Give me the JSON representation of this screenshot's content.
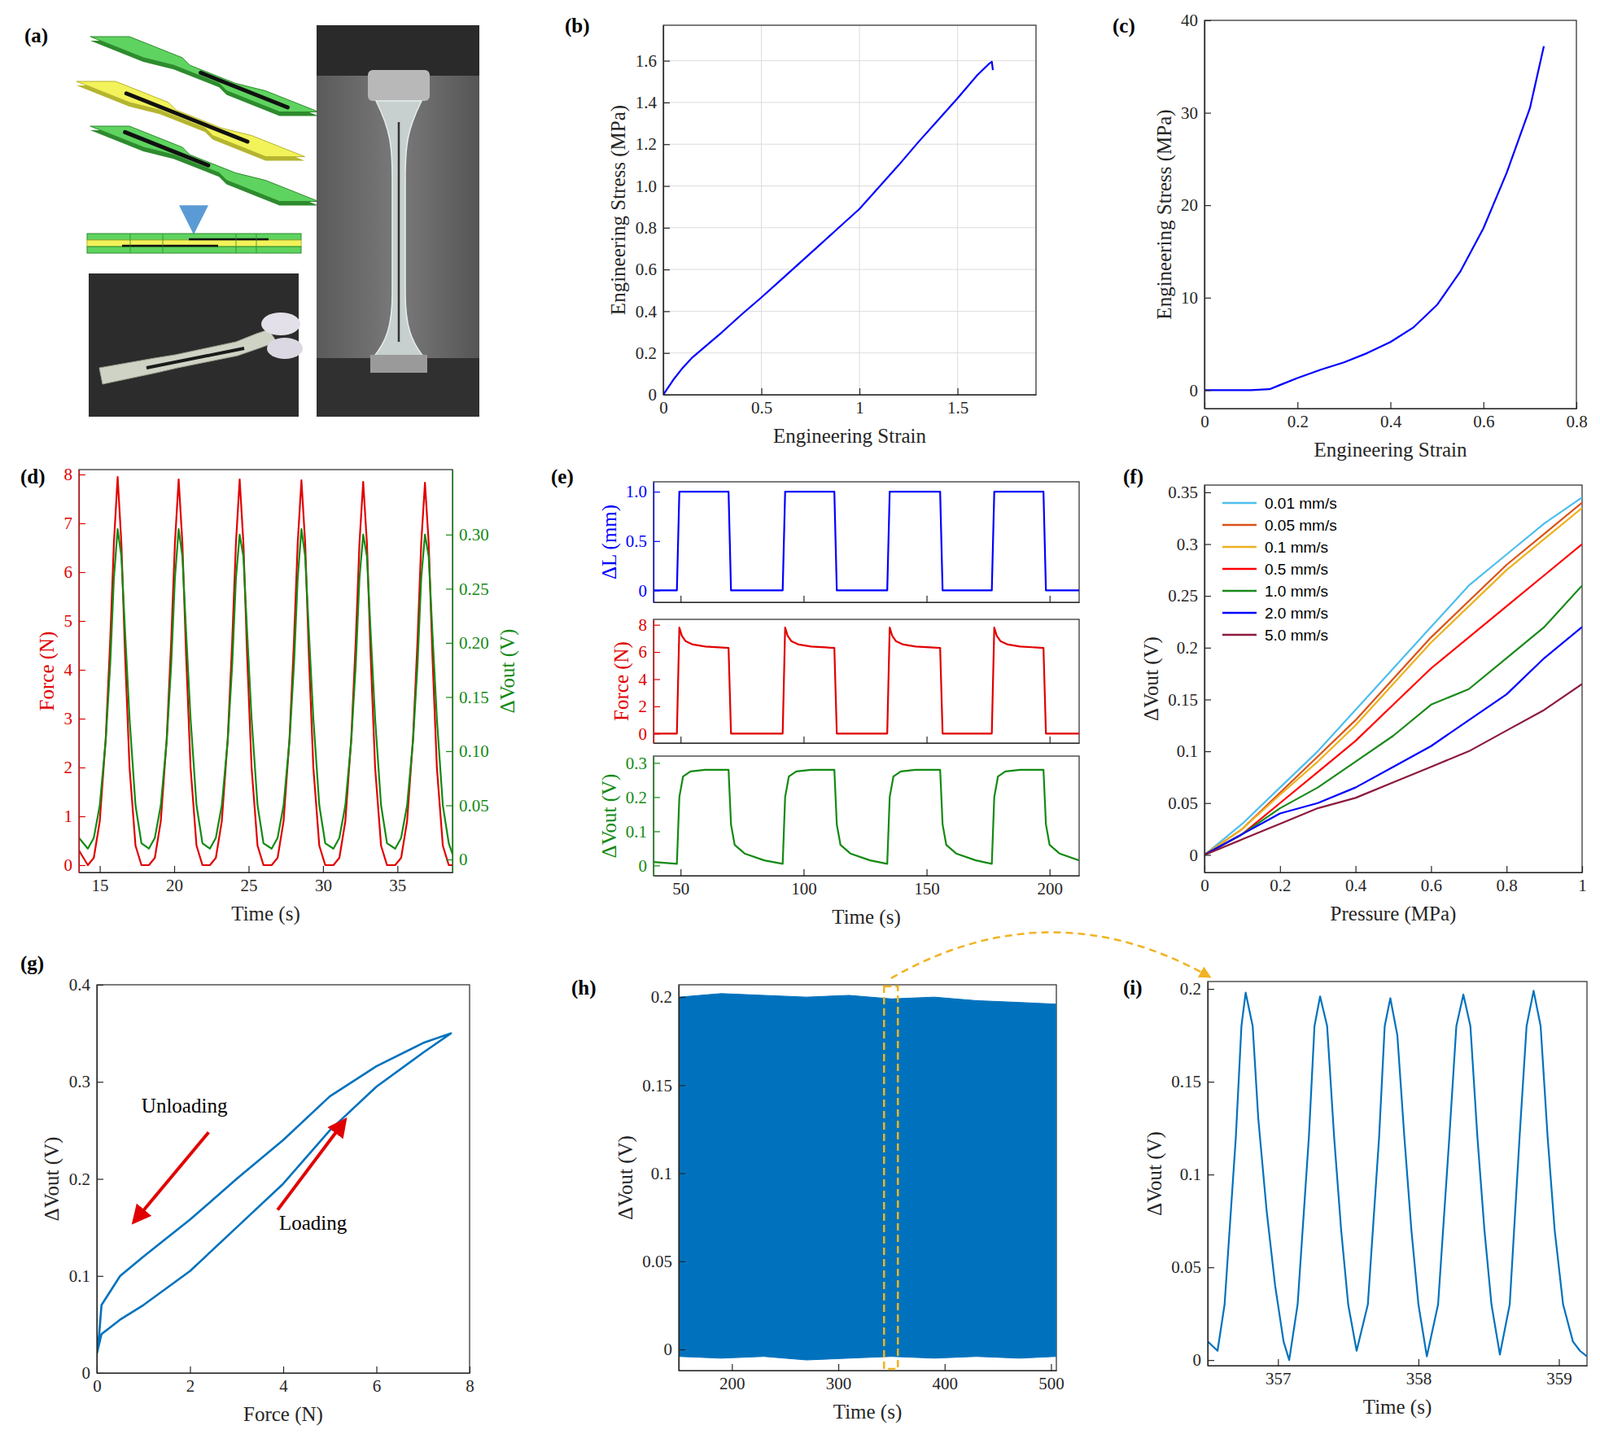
{
  "chart_data": [
    {
      "label": "(a)",
      "type": "diagram"
    },
    {
      "label": "(b)",
      "type": "line",
      "x_label": "Engineering Strain",
      "y_label": "Engineering Stress (MPa)",
      "xlim": [
        0,
        1.9
      ],
      "xticks": [
        0,
        0.5,
        1,
        1.5
      ],
      "ylim": [
        0,
        1.77
      ],
      "yticks": [
        0,
        0.2,
        0.4,
        0.6,
        0.8,
        {
          "value": 1,
          "label": "1.0"
        },
        1.2,
        1.4,
        1.6
      ],
      "grid": true,
      "x": [
        0,
        0.05,
        0.1,
        0.15,
        0.2,
        0.3,
        0.4,
        0.5,
        0.6,
        0.7,
        0.8,
        0.9,
        1.0,
        1.1,
        1.2,
        1.3,
        1.4,
        1.5,
        1.6,
        1.66,
        1.675,
        1.68
      ],
      "series": [
        {
          "color": "#0000ff",
          "values": [
            0,
            0.07,
            0.13,
            0.18,
            0.22,
            0.3,
            0.385,
            0.466,
            0.55,
            0.635,
            0.72,
            0.805,
            0.89,
            0.995,
            1.1,
            1.21,
            1.315,
            1.42,
            1.53,
            1.585,
            1.595,
            1.555
          ]
        }
      ]
    },
    {
      "label": "(c)",
      "type": "line",
      "x_label": "Engineering Strain",
      "y_label": "Engineering Stress (MPa)",
      "xlim": [
        0,
        0.8
      ],
      "xticks": [
        0,
        0.2,
        0.4,
        0.6,
        0.8
      ],
      "ylim": [
        -2,
        40
      ],
      "yticks": [
        0,
        10,
        20,
        30,
        40
      ],
      "x": [
        0,
        0.05,
        0.1,
        0.14,
        0.16,
        0.2,
        0.25,
        0.3,
        0.35,
        0.4,
        0.45,
        0.5,
        0.55,
        0.6,
        0.65,
        0.7,
        0.73
      ],
      "series": [
        {
          "color": "#0000ff",
          "values": [
            0,
            0,
            0,
            0.1,
            0.5,
            1.3,
            2.2,
            3.0,
            4.0,
            5.2,
            6.8,
            9.2,
            12.8,
            17.5,
            23.5,
            30.5,
            37.2
          ]
        }
      ]
    },
    {
      "label": "(d)",
      "type": "line",
      "x_label": "Time (s)",
      "y_label": "Force (N)",
      "y2_label": "ΔVout (V)",
      "xlim": [
        13.6,
        38.7
      ],
      "xticks": [
        15,
        20,
        25,
        30,
        35
      ],
      "ylim": [
        -0.15,
        8.1
      ],
      "yticks": [
        0,
        1,
        2,
        3,
        4,
        5,
        6,
        7,
        8
      ],
      "y2lim": [
        -0.012,
        0.36
      ],
      "y2ticks": [
        0,
        0.05,
        {
          "value": 0.1,
          "label": "0.10"
        },
        0.15,
        {
          "value": 0.2,
          "label": "0.20"
        },
        0.25,
        {
          "value": 0.3,
          "label": "0.30"
        }
      ],
      "x": [
        13.6,
        14.2,
        14.6,
        15.0,
        15.4,
        15.7,
        15.95,
        16.2,
        16.45,
        16.7,
        17.0,
        17.4,
        17.8,
        18.3,
        18.7,
        19.1,
        19.5,
        19.8,
        20.05,
        20.3,
        20.55,
        20.8,
        21.1,
        21.5,
        21.9,
        22.4,
        22.8,
        23.2,
        23.6,
        23.9,
        24.15,
        24.4,
        24.65,
        24.9,
        25.2,
        25.6,
        26.0,
        26.55,
        26.95,
        27.35,
        27.75,
        28.05,
        28.3,
        28.55,
        28.8,
        29.05,
        29.35,
        29.75,
        30.15,
        30.7,
        31.1,
        31.5,
        31.9,
        32.2,
        32.45,
        32.7,
        32.95,
        33.2,
        33.5,
        33.9,
        34.3,
        34.85,
        35.25,
        35.65,
        36.05,
        36.35,
        36.6,
        36.85,
        37.1,
        37.35,
        37.65,
        38.05,
        38.45,
        38.7
      ],
      "series": [
        {
          "color": "#e00000",
          "values": [
            0.3,
            0,
            0.15,
            0.9,
            2.6,
            4.6,
            6.6,
            7.95,
            6.6,
            4.3,
            2.0,
            0.4,
            0,
            0,
            0.15,
            0.9,
            2.6,
            4.6,
            6.6,
            7.9,
            6.6,
            4.3,
            2.0,
            0.4,
            0,
            0,
            0.15,
            0.9,
            2.6,
            4.6,
            6.6,
            7.9,
            6.6,
            4.3,
            2.0,
            0.4,
            0,
            0,
            0.15,
            0.9,
            2.6,
            4.6,
            6.6,
            7.88,
            6.6,
            4.3,
            2.0,
            0.4,
            0,
            0,
            0.15,
            0.9,
            2.6,
            4.6,
            6.6,
            7.85,
            6.6,
            4.3,
            2.0,
            0.4,
            0,
            0,
            0.15,
            0.9,
            2.6,
            4.6,
            6.6,
            7.83,
            6.6,
            4.3,
            2.0,
            0.4,
            0,
            0
          ]
        },
        {
          "color": "#138a13",
          "axis": "y2",
          "values": [
            0.02,
            0.01,
            0.02,
            0.05,
            0.11,
            0.18,
            0.26,
            0.305,
            0.28,
            0.21,
            0.13,
            0.05,
            0.015,
            0.01,
            0.02,
            0.05,
            0.11,
            0.18,
            0.26,
            0.305,
            0.28,
            0.21,
            0.13,
            0.05,
            0.015,
            0.01,
            0.02,
            0.05,
            0.11,
            0.18,
            0.26,
            0.3,
            0.28,
            0.21,
            0.13,
            0.05,
            0.015,
            0.01,
            0.02,
            0.05,
            0.11,
            0.18,
            0.26,
            0.305,
            0.28,
            0.21,
            0.13,
            0.05,
            0.015,
            0.01,
            0.02,
            0.05,
            0.11,
            0.18,
            0.26,
            0.3,
            0.28,
            0.21,
            0.13,
            0.05,
            0.015,
            0.01,
            0.02,
            0.05,
            0.11,
            0.18,
            0.26,
            0.3,
            0.28,
            0.21,
            0.13,
            0.05,
            0.015,
            0.005
          ]
        }
      ]
    },
    {
      "label": "(e)",
      "type": "line",
      "x_label": "Time (s)",
      "xlim": [
        39,
        212
      ],
      "xticks": [
        50,
        100,
        150,
        200
      ],
      "subplots": [
        {
          "y_label": "ΔL (mm)",
          "color": "#0000ff",
          "ylim": [
            -0.12,
            1.1
          ],
          "yticks": [
            0,
            0.5,
            {
              "value": 1,
              "label": "1.0"
            }
          ],
          "x": [
            39,
            48.5,
            49.5,
            69.5,
            70.5,
            91.5,
            92.5,
            112.5,
            113.5,
            134,
            135,
            155.5,
            156.5,
            176.5,
            177.5,
            197.5,
            198.5,
            212
          ],
          "values": [
            0,
            0,
            1,
            1,
            0,
            0,
            1,
            1,
            0,
            0,
            1,
            1,
            0,
            0,
            1,
            1,
            0,
            0
          ]
        },
        {
          "y_label": "Force (N)",
          "color": "#e00000",
          "ylim": [
            -0.7,
            8.4
          ],
          "yticks": [
            0,
            2,
            4,
            6,
            8
          ],
          "x": [
            39,
            48.5,
            49.5,
            50.5,
            52,
            55,
            60,
            69.5,
            70.5,
            91.5,
            92.5,
            93.5,
            95,
            98,
            103,
            112.5,
            113.5,
            134,
            135,
            136,
            137.5,
            140.5,
            145.5,
            155.5,
            156.5,
            176.5,
            177.5,
            178.5,
            180,
            183,
            188,
            197.5,
            198.5,
            212
          ],
          "values": [
            0,
            0,
            7.8,
            7.2,
            6.8,
            6.55,
            6.4,
            6.3,
            0,
            0,
            7.8,
            7.2,
            6.8,
            6.55,
            6.4,
            6.3,
            0,
            0,
            7.8,
            7.2,
            6.8,
            6.55,
            6.4,
            6.3,
            0,
            0,
            7.8,
            7.2,
            6.8,
            6.55,
            6.4,
            6.3,
            0,
            0
          ]
        },
        {
          "y_label": "ΔVout (V)",
          "color": "#138a13",
          "ylim": [
            -0.03,
            0.32
          ],
          "yticks": [
            0,
            0.1,
            0.2,
            0.3
          ],
          "x": [
            39,
            48.5,
            49.5,
            51,
            54,
            60,
            69.5,
            70.5,
            72,
            76,
            84,
            91.5,
            92.5,
            94,
            97,
            103,
            112.5,
            113.5,
            115,
            119,
            127,
            134,
            135,
            136.5,
            139.5,
            145.5,
            155.5,
            156.5,
            158,
            162,
            170,
            176.5,
            177.5,
            179,
            182,
            188,
            197.5,
            198.5,
            200,
            204,
            212
          ],
          "values": [
            0.01,
            0.005,
            0.2,
            0.26,
            0.275,
            0.28,
            0.28,
            0.12,
            0.06,
            0.035,
            0.015,
            0.005,
            0.2,
            0.26,
            0.275,
            0.28,
            0.28,
            0.12,
            0.06,
            0.035,
            0.015,
            0.005,
            0.2,
            0.26,
            0.275,
            0.28,
            0.28,
            0.12,
            0.06,
            0.035,
            0.015,
            0.005,
            0.2,
            0.26,
            0.275,
            0.28,
            0.28,
            0.12,
            0.06,
            0.035,
            0.015
          ]
        }
      ]
    },
    {
      "label": "(f)",
      "type": "line",
      "x_label": "Pressure (MPa)",
      "y_label": "ΔVout (V)",
      "xlim": [
        0,
        1
      ],
      "xticks": [
        0,
        0.2,
        0.4,
        0.6,
        0.8,
        1
      ],
      "ylim": [
        -0.017,
        0.357
      ],
      "yticks": [
        0,
        0.05,
        0.1,
        0.15,
        0.2,
        0.25,
        0.3,
        0.35
      ],
      "legend": "top-left",
      "x": [
        0,
        0.1,
        0.2,
        0.3,
        0.4,
        0.5,
        0.6,
        0.7,
        0.8,
        0.9,
        1
      ],
      "series": [
        {
          "name": "0.01 mm/s",
          "color": "#4dbeee",
          "values": [
            0,
            0.03,
            0.065,
            0.1,
            0.14,
            0.18,
            0.22,
            0.26,
            0.29,
            0.32,
            0.345
          ]
        },
        {
          "name": "0.05 mm/s",
          "color": "#d95319",
          "values": [
            0,
            0.025,
            0.06,
            0.095,
            0.13,
            0.17,
            0.21,
            0.245,
            0.28,
            0.31,
            0.34
          ]
        },
        {
          "name": "0.1 mm/s",
          "color": "#edb120",
          "values": [
            0,
            0.025,
            0.058,
            0.09,
            0.125,
            0.165,
            0.205,
            0.24,
            0.275,
            0.305,
            0.335
          ]
        },
        {
          "name": "0.5 mm/s",
          "color": "#ff0000",
          "values": [
            0,
            0.02,
            0.05,
            0.08,
            0.11,
            0.145,
            0.18,
            0.21,
            0.24,
            0.27,
            0.3
          ]
        },
        {
          "name": "1.0 mm/s",
          "color": "#1a8a1a",
          "values": [
            0,
            0.02,
            0.045,
            0.065,
            0.09,
            0.115,
            0.145,
            0.16,
            0.19,
            0.22,
            0.26
          ]
        },
        {
          "name": "2.0 mm/s",
          "color": "#0000ff",
          "values": [
            0,
            0.02,
            0.04,
            0.05,
            0.065,
            0.085,
            0.105,
            0.13,
            0.155,
            0.19,
            0.22
          ]
        },
        {
          "name": "5.0 mm/s",
          "color": "#8c1a3c",
          "values": [
            0,
            0.015,
            0.03,
            0.045,
            0.055,
            0.07,
            0.085,
            0.1,
            0.12,
            0.14,
            0.165
          ]
        }
      ]
    },
    {
      "label": "(g)",
      "type": "line",
      "x_label": "Force (N)",
      "y_label": "ΔVout (V)",
      "xlim": [
        0,
        8
      ],
      "xticks": [
        0,
        2,
        4,
        6,
        8
      ],
      "ylim": [
        0,
        0.4
      ],
      "yticks": [
        0,
        0.1,
        0.2,
        0.3,
        0.4
      ],
      "annotations": [
        "Unloading",
        "Loading"
      ],
      "x": [
        0,
        0.1,
        0.5,
        1,
        2,
        3,
        4,
        5,
        6,
        7,
        7.6,
        7,
        6,
        5,
        4,
        3,
        2,
        1,
        0.5,
        0.1,
        0.05,
        0
      ],
      "series": [
        {
          "color": "#0072bd",
          "values": [
            0.02,
            0.04,
            0.055,
            0.07,
            0.105,
            0.15,
            0.195,
            0.25,
            0.295,
            0.33,
            0.35,
            0.34,
            0.316,
            0.285,
            0.24,
            0.2,
            0.158,
            0.12,
            0.1,
            0.07,
            0.04,
            0.02
          ]
        }
      ]
    },
    {
      "label": "(h)",
      "type": "area",
      "x_label": "Time (s)",
      "y_label": "ΔVout (V)",
      "xlim": [
        150,
        505
      ],
      "xticks": [
        200,
        300,
        400,
        500
      ],
      "ylim": [
        -0.012,
        0.207
      ],
      "yticks": [
        0,
        0.05,
        0.1,
        0.15,
        0.2
      ],
      "highlight_x": [
        343,
        356
      ],
      "x": [
        150,
        190,
        230,
        270,
        310,
        350,
        390,
        430,
        470,
        505
      ],
      "series": [
        {
          "color": "#0072bd",
          "upper": [
            0.2,
            0.202,
            0.201,
            0.2,
            0.201,
            0.199,
            0.2,
            0.198,
            0.197,
            0.196
          ],
          "lower": [
            -0.004,
            -0.005,
            -0.004,
            -0.006,
            -0.005,
            -0.004,
            -0.005,
            -0.004,
            -0.005,
            -0.004
          ]
        }
      ]
    },
    {
      "label": "(i)",
      "type": "line",
      "x_label": "Time (s)",
      "y_label": "ΔVout (V)",
      "xlim": [
        356.5,
        359.2
      ],
      "xticks": [
        357,
        358,
        359
      ],
      "ylim": [
        -0.003,
        0.204
      ],
      "yticks": [
        0,
        0.05,
        0.1,
        0.15,
        0.2
      ],
      "x": [
        356.5,
        356.57,
        356.62,
        356.7,
        356.74,
        356.77,
        356.82,
        356.86,
        356.92,
        356.98,
        357.04,
        357.08,
        357.14,
        357.22,
        357.26,
        357.3,
        357.35,
        357.4,
        357.45,
        357.5,
        357.56,
        357.64,
        357.72,
        357.76,
        357.8,
        357.85,
        357.9,
        357.95,
        358.0,
        358.06,
        358.14,
        358.22,
        358.27,
        358.32,
        358.37,
        358.42,
        358.47,
        358.52,
        358.58,
        358.65,
        358.72,
        358.77,
        358.82,
        358.87,
        358.92,
        358.97,
        359.03,
        359.1,
        359.15,
        359.2
      ],
      "series": [
        {
          "color": "#0072bd",
          "values": [
            0.01,
            0.005,
            0.03,
            0.12,
            0.18,
            0.198,
            0.18,
            0.13,
            0.08,
            0.04,
            0.01,
            0.0,
            0.03,
            0.12,
            0.18,
            0.196,
            0.18,
            0.12,
            0.07,
            0.03,
            0.005,
            0.03,
            0.12,
            0.18,
            0.195,
            0.175,
            0.12,
            0.07,
            0.03,
            0.002,
            0.03,
            0.12,
            0.18,
            0.197,
            0.18,
            0.12,
            0.07,
            0.03,
            0.003,
            0.03,
            0.12,
            0.18,
            0.199,
            0.18,
            0.12,
            0.07,
            0.03,
            0.01,
            0.005,
            0.002
          ]
        }
      ]
    }
  ]
}
